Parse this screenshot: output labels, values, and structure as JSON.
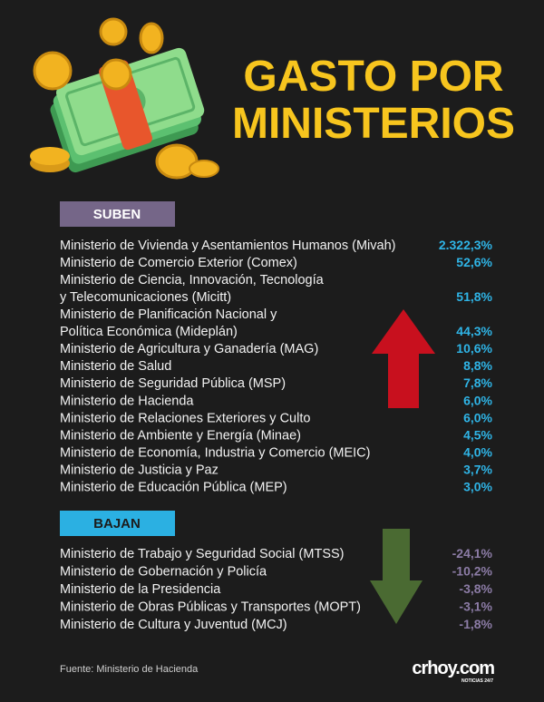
{
  "title": [
    "GASTO POR",
    "MINISTERIOS"
  ],
  "sections": [
    {
      "label": "SUBEN",
      "rows": [
        {
          "name": [
            "Ministerio de Vivienda y Asentamientos Humanos (Mivah)"
          ],
          "value": "2.322,3%"
        },
        {
          "name": [
            "Ministerio de Comercio Exterior (Comex)"
          ],
          "value": "52,6%"
        },
        {
          "name": [
            "Ministerio de Ciencia, Innovación, Tecnología",
            "y Telecomunicaciones (Micitt)"
          ],
          "value": "51,8%"
        },
        {
          "name": [
            "Ministerio de Planificación Nacional y",
            "Política Económica (Mideplán)"
          ],
          "value": "44,3%"
        },
        {
          "name": [
            "Ministerio de Agricultura y Ganadería (MAG)"
          ],
          "value": "10,6%"
        },
        {
          "name": [
            "Ministerio de Salud"
          ],
          "value": "8,8%"
        },
        {
          "name": [
            "Ministerio de Seguridad Pública (MSP)"
          ],
          "value": "7,8%"
        },
        {
          "name": [
            "Ministerio de Hacienda"
          ],
          "value": "6,0%"
        },
        {
          "name": [
            "Ministerio de Relaciones Exteriores y Culto"
          ],
          "value": "6,0%"
        },
        {
          "name": [
            "Ministerio de Ambiente y Energía (Minae)"
          ],
          "value": "4,5%"
        },
        {
          "name": [
            "Ministerio de Economía, Industria y Comercio (MEIC)"
          ],
          "value": "4,0%"
        },
        {
          "name": [
            "Ministerio de Justicia y Paz"
          ],
          "value": "3,7%"
        },
        {
          "name": [
            "Ministerio de Educación Pública (MEP)"
          ],
          "value": "3,0%"
        }
      ]
    },
    {
      "label": "BAJAN",
      "rows": [
        {
          "name": [
            "Ministerio de Trabajo y Seguridad Social (MTSS)"
          ],
          "value": "-24,1%"
        },
        {
          "name": [
            "Ministerio de Gobernación y Policía"
          ],
          "value": "-10,2%"
        },
        {
          "name": [
            "Ministerio de la Presidencia"
          ],
          "value": "-3,8%"
        },
        {
          "name": [
            "Ministerio de Obras Públicas y Transportes (MOPT)"
          ],
          "value": "-3,1%"
        },
        {
          "name": [
            "Ministerio de Cultura y Juventud (MCJ)"
          ],
          "value": "-1,8%"
        }
      ]
    }
  ],
  "source": "Fuente: Ministerio de Hacienda",
  "logo": {
    "name": "crhoy.com",
    "tagline": "NOTICIAS 24/7"
  }
}
